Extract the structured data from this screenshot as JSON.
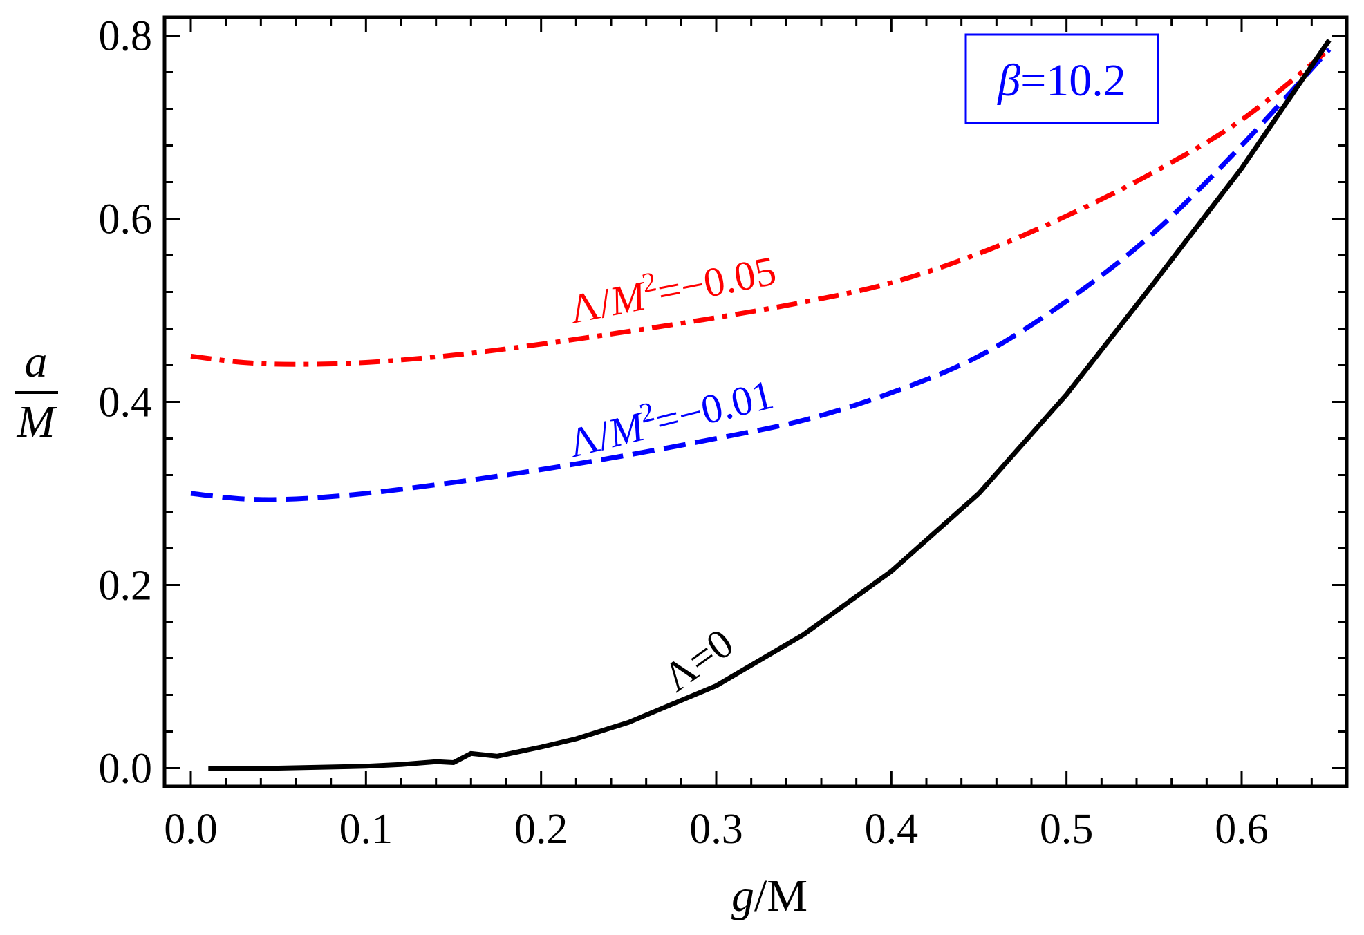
{
  "chart_data": {
    "type": "line",
    "title": "",
    "xlabel": {
      "italic": "g",
      "rest": "/M"
    },
    "ylabel": {
      "numerator": "a",
      "denominator": "M"
    },
    "xlim": [
      -0.015,
      0.66
    ],
    "ylim": [
      -0.02,
      0.82
    ],
    "xticks": [
      {
        "value": 0.0,
        "label": "0.0"
      },
      {
        "value": 0.1,
        "label": "0.1"
      },
      {
        "value": 0.2,
        "label": "0.2"
      },
      {
        "value": 0.3,
        "label": "0.3"
      },
      {
        "value": 0.4,
        "label": "0.4"
      },
      {
        "value": 0.5,
        "label": "0.5"
      },
      {
        "value": 0.6,
        "label": "0.6"
      }
    ],
    "yticks": [
      {
        "value": 0.0,
        "label": "0.0"
      },
      {
        "value": 0.2,
        "label": "0.2"
      },
      {
        "value": 0.4,
        "label": "0.4"
      },
      {
        "value": 0.6,
        "label": "0.6"
      },
      {
        "value": 0.8,
        "label": "0.8"
      }
    ],
    "grid": false,
    "annotation": {
      "symbol": "β",
      "text": "=10.2",
      "color": "#0000ff",
      "position": "top-right"
    },
    "series": [
      {
        "name": "Λ/M²=−0.05",
        "label_parts": [
          "Λ/",
          "M",
          "2",
          "=−0.05"
        ],
        "color": "#ff0000",
        "dash": "dash-dot",
        "x": [
          0.0,
          0.03,
          0.06,
          0.1,
          0.15,
          0.2,
          0.25,
          0.3,
          0.35,
          0.4,
          0.45,
          0.5,
          0.55,
          0.6,
          0.65
        ],
        "y": [
          0.45,
          0.443,
          0.441,
          0.443,
          0.451,
          0.463,
          0.477,
          0.492,
          0.509,
          0.53,
          0.562,
          0.603,
          0.651,
          0.708,
          0.785
        ]
      },
      {
        "name": "Λ/M²=−0.01",
        "label_parts": [
          "Λ/",
          "M",
          "2",
          "=−0.01"
        ],
        "color": "#0000ff",
        "dash": "dashed",
        "x": [
          0.0,
          0.03,
          0.06,
          0.1,
          0.15,
          0.2,
          0.25,
          0.3,
          0.35,
          0.4,
          0.45,
          0.5,
          0.55,
          0.6,
          0.65
        ],
        "y": [
          0.3,
          0.294,
          0.294,
          0.3,
          0.312,
          0.326,
          0.342,
          0.36,
          0.38,
          0.41,
          0.45,
          0.51,
          0.585,
          0.68,
          0.785
        ]
      },
      {
        "name": "Λ=0",
        "label_parts": [
          "Λ=0"
        ],
        "color": "#000000",
        "dash": "solid",
        "x": [
          0.01,
          0.05,
          0.1,
          0.12,
          0.14,
          0.15,
          0.16,
          0.175,
          0.2,
          0.22,
          0.25,
          0.3,
          0.35,
          0.4,
          0.45,
          0.5,
          0.55,
          0.6,
          0.65
        ],
        "y": [
          0.0,
          0.0,
          0.002,
          0.004,
          0.007,
          0.006,
          0.016,
          0.013,
          0.023,
          0.032,
          0.05,
          0.09,
          0.146,
          0.215,
          0.3,
          0.408,
          0.53,
          0.655,
          0.795
        ]
      }
    ]
  }
}
